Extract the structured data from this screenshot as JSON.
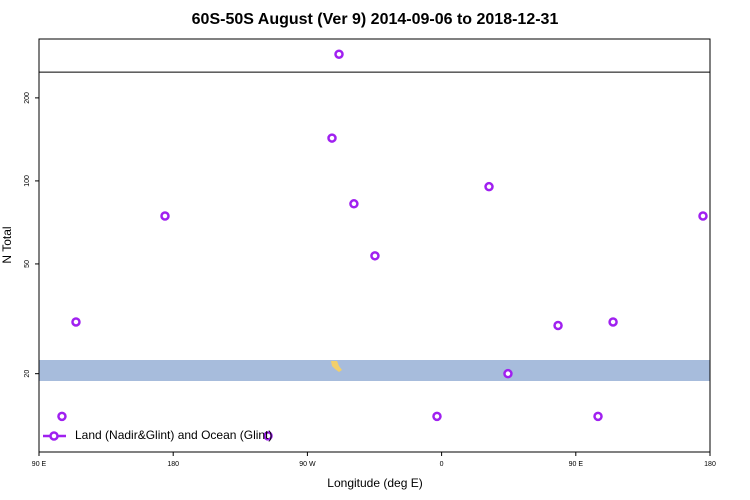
{
  "chart_data": {
    "type": "scatter",
    "title": "60S-50S August (Ver 9)   2014-09-06 to 2018-12-31",
    "x_label": "Longitude (deg E)",
    "y_label": "N Total",
    "log_y": true,
    "color": "#a020f0",
    "legend": "bottom-left",
    "xlim": [
      90,
      540
    ],
    "xticks": [
      {
        "value": 90,
        "label": "90 E"
      },
      180,
      {
        "value": 270,
        "label": "90 W"
      },
      {
        "value": 360,
        "label": "0"
      },
      {
        "value": 450,
        "label": "90 E"
      },
      {
        "value": 540,
        "label": "180"
      }
    ],
    "ylim": [
      10.4,
      327
    ],
    "yticks": [
      20,
      50,
      100,
      200
    ],
    "hline": 248,
    "series": [
      {
        "name": "Land (Nadir&Glint) and Ocean (Glint)",
        "color": "#a020f0",
        "x": [
          105.4,
          114.8,
          174.5,
          243.6,
          286.5,
          291.2,
          301.2,
          315.3,
          356.9,
          391.8,
          404.5,
          438.1,
          464.9,
          475,
          535.3
        ],
        "values": [
          14.0,
          30.8,
          74.6,
          11.9,
          143,
          288,
          82.6,
          53.5,
          14.0,
          95.3,
          20,
          29.9,
          14.0,
          30.8,
          74.6
        ]
      }
    ]
  }
}
